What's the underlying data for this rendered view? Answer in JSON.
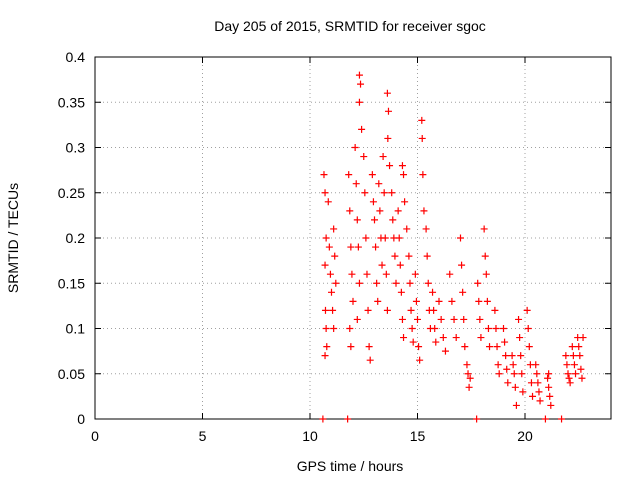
{
  "chart_data": {
    "type": "scatter",
    "title": "Day 205 of 2015, SRMTID for receiver sgoc",
    "xlabel": "GPS time / hours",
    "ylabel": "SRMTID / TECUs",
    "xlim": [
      0,
      24
    ],
    "ylim": [
      0,
      0.4
    ],
    "xticks": [
      0,
      5,
      10,
      15,
      20
    ],
    "yticks": [
      0,
      0.05,
      0.1,
      0.15,
      0.2,
      0.25,
      0.3,
      0.35,
      0.4
    ],
    "grid": true,
    "marker": "+",
    "color": "#ff0000",
    "series": [
      {
        "name": "SRMTID",
        "points": [
          [
            10.6,
            0.0
          ],
          [
            11.75,
            0.0
          ],
          [
            17.75,
            0.0
          ],
          [
            20.95,
            0.0
          ],
          [
            21.7,
            0.0
          ],
          [
            10.65,
            0.27
          ],
          [
            10.7,
            0.25
          ],
          [
            10.75,
            0.2
          ],
          [
            10.7,
            0.17
          ],
          [
            10.72,
            0.12
          ],
          [
            10.75,
            0.1
          ],
          [
            10.78,
            0.08
          ],
          [
            10.7,
            0.07
          ],
          [
            10.85,
            0.24
          ],
          [
            10.9,
            0.19
          ],
          [
            10.95,
            0.16
          ],
          [
            11.0,
            0.14
          ],
          [
            11.05,
            0.12
          ],
          [
            11.1,
            0.1
          ],
          [
            11.1,
            0.21
          ],
          [
            11.15,
            0.18
          ],
          [
            11.2,
            0.15
          ],
          [
            11.8,
            0.27
          ],
          [
            11.85,
            0.23
          ],
          [
            11.9,
            0.19
          ],
          [
            11.95,
            0.16
          ],
          [
            12.0,
            0.13
          ],
          [
            11.85,
            0.1
          ],
          [
            11.9,
            0.08
          ],
          [
            12.1,
            0.3
          ],
          [
            12.15,
            0.26
          ],
          [
            12.2,
            0.22
          ],
          [
            12.25,
            0.19
          ],
          [
            12.3,
            0.15
          ],
          [
            12.2,
            0.11
          ],
          [
            12.3,
            0.38
          ],
          [
            12.35,
            0.37
          ],
          [
            12.4,
            0.32
          ],
          [
            12.3,
            0.35
          ],
          [
            12.5,
            0.29
          ],
          [
            12.55,
            0.25
          ],
          [
            12.6,
            0.2
          ],
          [
            12.65,
            0.16
          ],
          [
            12.7,
            0.12
          ],
          [
            12.75,
            0.08
          ],
          [
            12.8,
            0.065
          ],
          [
            12.9,
            0.27
          ],
          [
            12.95,
            0.24
          ],
          [
            13.0,
            0.22
          ],
          [
            13.05,
            0.19
          ],
          [
            13.1,
            0.15
          ],
          [
            13.15,
            0.13
          ],
          [
            13.2,
            0.26
          ],
          [
            13.25,
            0.23
          ],
          [
            13.3,
            0.2
          ],
          [
            13.35,
            0.17
          ],
          [
            13.4,
            0.29
          ],
          [
            13.45,
            0.25
          ],
          [
            13.5,
            0.2
          ],
          [
            13.55,
            0.16
          ],
          [
            13.6,
            0.12
          ],
          [
            13.6,
            0.36
          ],
          [
            13.65,
            0.34
          ],
          [
            13.62,
            0.31
          ],
          [
            13.7,
            0.28
          ],
          [
            13.8,
            0.25
          ],
          [
            13.85,
            0.22
          ],
          [
            13.9,
            0.2
          ],
          [
            13.95,
            0.18
          ],
          [
            14.0,
            0.15
          ],
          [
            14.1,
            0.23
          ],
          [
            14.15,
            0.2
          ],
          [
            14.2,
            0.17
          ],
          [
            14.25,
            0.14
          ],
          [
            14.3,
            0.11
          ],
          [
            14.35,
            0.09
          ],
          [
            14.3,
            0.28
          ],
          [
            14.35,
            0.27
          ],
          [
            14.4,
            0.24
          ],
          [
            14.5,
            0.21
          ],
          [
            14.6,
            0.18
          ],
          [
            14.65,
            0.15
          ],
          [
            14.7,
            0.12
          ],
          [
            14.75,
            0.1
          ],
          [
            14.8,
            0.085
          ],
          [
            14.9,
            0.16
          ],
          [
            14.95,
            0.13
          ],
          [
            15.0,
            0.11
          ],
          [
            15.05,
            0.08
          ],
          [
            15.1,
            0.065
          ],
          [
            15.2,
            0.33
          ],
          [
            15.22,
            0.31
          ],
          [
            15.25,
            0.27
          ],
          [
            15.3,
            0.23
          ],
          [
            15.4,
            0.21
          ],
          [
            15.45,
            0.18
          ],
          [
            15.5,
            0.15
          ],
          [
            15.55,
            0.12
          ],
          [
            15.6,
            0.1
          ],
          [
            15.7,
            0.14
          ],
          [
            15.75,
            0.12
          ],
          [
            15.8,
            0.1
          ],
          [
            15.85,
            0.085
          ],
          [
            16.0,
            0.13
          ],
          [
            16.1,
            0.11
          ],
          [
            16.2,
            0.09
          ],
          [
            16.3,
            0.075
          ],
          [
            16.5,
            0.16
          ],
          [
            16.6,
            0.13
          ],
          [
            16.7,
            0.11
          ],
          [
            16.8,
            0.09
          ],
          [
            17.0,
            0.2
          ],
          [
            17.05,
            0.17
          ],
          [
            17.1,
            0.14
          ],
          [
            17.15,
            0.11
          ],
          [
            17.2,
            0.08
          ],
          [
            17.3,
            0.06
          ],
          [
            17.35,
            0.05
          ],
          [
            17.4,
            0.035
          ],
          [
            17.45,
            0.045
          ],
          [
            17.8,
            0.15
          ],
          [
            17.85,
            0.13
          ],
          [
            17.9,
            0.11
          ],
          [
            17.95,
            0.09
          ],
          [
            18.1,
            0.21
          ],
          [
            18.15,
            0.18
          ],
          [
            18.2,
            0.16
          ],
          [
            18.25,
            0.13
          ],
          [
            18.3,
            0.1
          ],
          [
            18.35,
            0.08
          ],
          [
            18.6,
            0.12
          ],
          [
            18.65,
            0.1
          ],
          [
            18.7,
            0.08
          ],
          [
            18.75,
            0.06
          ],
          [
            18.8,
            0.05
          ],
          [
            19.0,
            0.1
          ],
          [
            19.05,
            0.085
          ],
          [
            19.1,
            0.07
          ],
          [
            19.15,
            0.055
          ],
          [
            19.2,
            0.04
          ],
          [
            19.4,
            0.07
          ],
          [
            19.45,
            0.06
          ],
          [
            19.5,
            0.05
          ],
          [
            19.55,
            0.035
          ],
          [
            19.6,
            0.015
          ],
          [
            19.7,
            0.11
          ],
          [
            19.75,
            0.09
          ],
          [
            19.8,
            0.07
          ],
          [
            19.85,
            0.05
          ],
          [
            19.9,
            0.03
          ],
          [
            20.1,
            0.12
          ],
          [
            20.15,
            0.1
          ],
          [
            20.2,
            0.08
          ],
          [
            20.25,
            0.06
          ],
          [
            20.3,
            0.04
          ],
          [
            20.35,
            0.025
          ],
          [
            20.5,
            0.06
          ],
          [
            20.55,
            0.05
          ],
          [
            20.6,
            0.04
          ],
          [
            20.65,
            0.03
          ],
          [
            20.7,
            0.02
          ],
          [
            21.05,
            0.045
          ],
          [
            21.1,
            0.035
          ],
          [
            21.15,
            0.025
          ],
          [
            21.2,
            0.015
          ],
          [
            21.1,
            0.05
          ],
          [
            21.9,
            0.07
          ],
          [
            21.95,
            0.06
          ],
          [
            22.0,
            0.05
          ],
          [
            22.05,
            0.045
          ],
          [
            22.1,
            0.04
          ],
          [
            22.2,
            0.08
          ],
          [
            22.25,
            0.07
          ],
          [
            22.3,
            0.06
          ],
          [
            22.35,
            0.05
          ],
          [
            22.45,
            0.09
          ],
          [
            22.5,
            0.08
          ],
          [
            22.55,
            0.07
          ],
          [
            22.6,
            0.055
          ],
          [
            22.65,
            0.045
          ],
          [
            22.7,
            0.09
          ]
        ]
      }
    ]
  }
}
